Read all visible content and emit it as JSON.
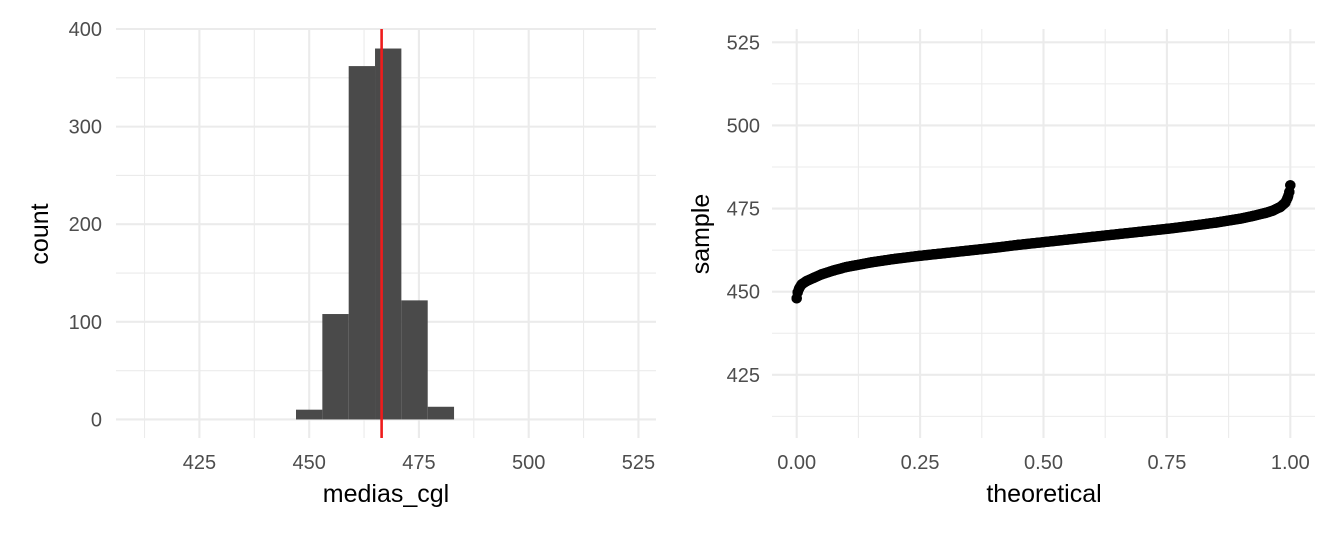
{
  "chart_data": [
    {
      "type": "bar",
      "subtype": "histogram",
      "xlabel": "medias_cgl",
      "ylabel": "count",
      "xlim": [
        406,
        529
      ],
      "ylim": [
        -19,
        400
      ],
      "xticks": [
        425,
        450,
        475,
        500,
        525
      ],
      "xtick_labels": [
        "425",
        "450",
        "475",
        "500",
        "525"
      ],
      "yticks": [
        0,
        100,
        200,
        300,
        400
      ],
      "ytick_labels": [
        "0",
        "100",
        "200",
        "300",
        "400"
      ],
      "grid": true,
      "bar_color": "#4a4a4a",
      "bins": [
        {
          "start": 447.0,
          "end": 453.0,
          "count": 10
        },
        {
          "start": 453.0,
          "end": 459.0,
          "count": 108
        },
        {
          "start": 459.0,
          "end": 465.0,
          "count": 362
        },
        {
          "start": 465.0,
          "end": 471.0,
          "count": 380
        },
        {
          "start": 471.0,
          "end": 477.0,
          "count": 122
        },
        {
          "start": 477.0,
          "end": 483.0,
          "count": 13
        }
      ],
      "vline": {
        "x": 466.5,
        "color": "#ee1c1c"
      }
    },
    {
      "type": "scatter",
      "subtype": "qq",
      "xlabel": "theoretical",
      "ylabel": "sample",
      "xlim": [
        -0.05,
        1.05
      ],
      "ylim": [
        406,
        529
      ],
      "xticks": [
        0,
        0.25,
        0.5,
        0.75,
        1
      ],
      "xtick_labels": [
        "0.00",
        "0.25",
        "0.50",
        "0.75",
        "1.00"
      ],
      "yticks": [
        425,
        450,
        475,
        500,
        525
      ],
      "ytick_labels": [
        "425",
        "450",
        "475",
        "500",
        "525"
      ],
      "grid": true,
      "point_color": "#000000",
      "points": [
        {
          "x": 0.0,
          "y": 448.0
        },
        {
          "x": 0.002,
          "y": 449.8
        },
        {
          "x": 0.005,
          "y": 451.0
        },
        {
          "x": 0.01,
          "y": 452.2
        },
        {
          "x": 0.02,
          "y": 453.2
        },
        {
          "x": 0.035,
          "y": 454.2
        },
        {
          "x": 0.05,
          "y": 455.2
        },
        {
          "x": 0.075,
          "y": 456.4
        },
        {
          "x": 0.1,
          "y": 457.4
        },
        {
          "x": 0.15,
          "y": 458.8
        },
        {
          "x": 0.2,
          "y": 459.9
        },
        {
          "x": 0.25,
          "y": 460.8
        },
        {
          "x": 0.3,
          "y": 461.6
        },
        {
          "x": 0.35,
          "y": 462.4
        },
        {
          "x": 0.4,
          "y": 463.2
        },
        {
          "x": 0.45,
          "y": 464.1
        },
        {
          "x": 0.5,
          "y": 464.9
        },
        {
          "x": 0.55,
          "y": 465.7
        },
        {
          "x": 0.6,
          "y": 466.5
        },
        {
          "x": 0.65,
          "y": 467.3
        },
        {
          "x": 0.7,
          "y": 468.1
        },
        {
          "x": 0.75,
          "y": 468.9
        },
        {
          "x": 0.8,
          "y": 469.8
        },
        {
          "x": 0.85,
          "y": 470.8
        },
        {
          "x": 0.9,
          "y": 472.0
        },
        {
          "x": 0.925,
          "y": 472.8
        },
        {
          "x": 0.95,
          "y": 473.7
        },
        {
          "x": 0.965,
          "y": 474.4
        },
        {
          "x": 0.98,
          "y": 475.5
        },
        {
          "x": 0.99,
          "y": 476.8
        },
        {
          "x": 0.995,
          "y": 478.4
        },
        {
          "x": 0.998,
          "y": 480.0
        },
        {
          "x": 1.0,
          "y": 482.0
        }
      ]
    }
  ]
}
